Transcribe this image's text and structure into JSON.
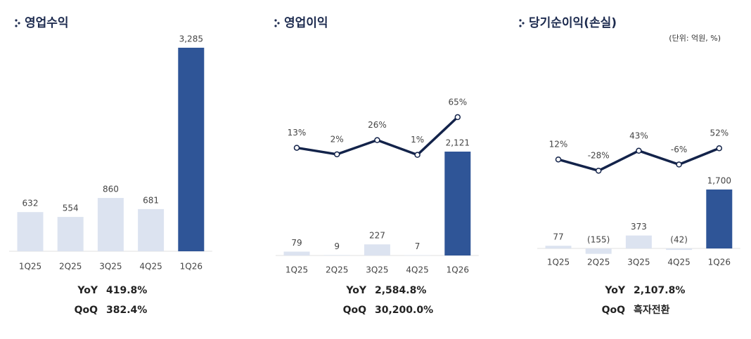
{
  "unit_note": "(단위: 억원, %)",
  "chart_data": [
    {
      "type": "bar",
      "title": "영업수익",
      "categories": [
        "1Q25",
        "2Q25",
        "3Q25",
        "4Q25",
        "1Q26"
      ],
      "values": [
        632,
        554,
        860,
        681,
        3285
      ],
      "value_labels": [
        "632",
        "554",
        "860",
        "681",
        "3,285"
      ],
      "colors": [
        "#dce3f0",
        "#dce3f0",
        "#dce3f0",
        "#dce3f0",
        "#2f5597"
      ],
      "stats": [
        [
          "YoY",
          "419.8%"
        ],
        [
          "QoQ",
          "382.4%"
        ]
      ]
    },
    {
      "type": "combo",
      "title": "영업이익",
      "categories": [
        "1Q25",
        "2Q25",
        "3Q25",
        "4Q25",
        "1Q26"
      ],
      "values": [
        79,
        9,
        227,
        7,
        2121
      ],
      "value_labels": [
        "79",
        "9",
        "227",
        "7",
        "2,121"
      ],
      "colors": [
        "#dce3f0",
        "#dce3f0",
        "#dce3f0",
        "#dce3f0",
        "#2f5597"
      ],
      "line_values": [
        13,
        2,
        26,
        1,
        65
      ],
      "line_labels": [
        "13%",
        "2%",
        "26%",
        "1%",
        "65%"
      ],
      "line_color": "#13234a",
      "stats": [
        [
          "YoY",
          "2,584.8%"
        ],
        [
          "QoQ",
          "30,200.0%"
        ]
      ]
    },
    {
      "type": "combo",
      "title": "당기순이익(손실)",
      "categories": [
        "1Q25",
        "2Q25",
        "3Q25",
        "4Q25",
        "1Q26"
      ],
      "values": [
        77,
        -155,
        373,
        -42,
        1700
      ],
      "value_labels": [
        "77",
        "(155)",
        "373",
        "(42)",
        "1,700"
      ],
      "colors": [
        "#dce3f0",
        "#dce3f0",
        "#dce3f0",
        "#dce3f0",
        "#2f5597"
      ],
      "line_values": [
        12,
        -28,
        43,
        -6,
        52
      ],
      "line_labels": [
        "12%",
        "-28%",
        "43%",
        "-6%",
        "52%"
      ],
      "line_color": "#13234a",
      "stats": [
        [
          "YoY",
          "2,107.8%"
        ],
        [
          "QoQ",
          "흑자전환"
        ]
      ]
    }
  ]
}
